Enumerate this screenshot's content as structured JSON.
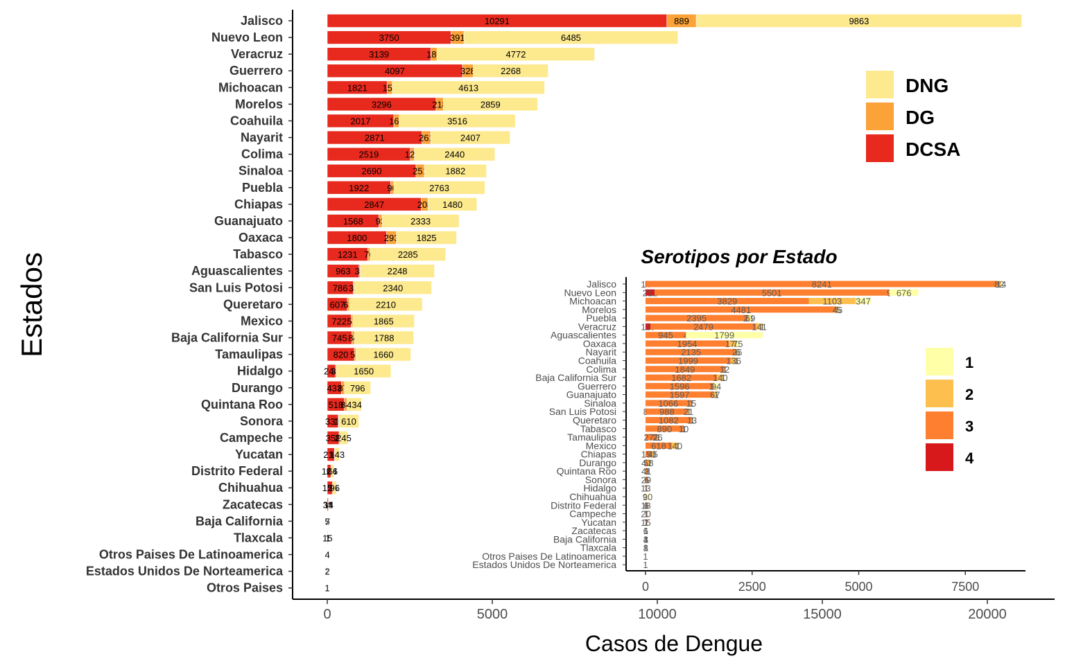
{
  "chart_data": [
    {
      "type": "bar",
      "orientation": "horizontal",
      "stacked": true,
      "xlabel": "Casos de Dengue",
      "ylabel": "Estados",
      "xlim": [
        0,
        21000
      ],
      "xticks": [
        0,
        5000,
        10000,
        15000,
        20000
      ],
      "legend_position": "top-right",
      "categories": [
        "Jalisco",
        "Nuevo Leon",
        "Veracruz",
        "Guerrero",
        "Michoacan",
        "Morelos",
        "Coahuila",
        "Nayarit",
        "Colima",
        "Sinaloa",
        "Puebla",
        "Chiapas",
        "Guanajuato",
        "Oaxaca",
        "Tabasco",
        "Aguascalientes",
        "San  Luis Potosi",
        "Queretaro",
        "Mexico",
        "Baja California Sur",
        "Tamaulipas",
        "Hidalgo",
        "Durango",
        "Quintana Roo",
        "Sonora",
        "Campeche",
        "Yucatan",
        "Distrito Federal",
        "Chihuahua",
        "Zacatecas",
        "Baja California",
        "Tlaxcala",
        "Otros Paises De Latinoamerica",
        "Estados Unidos De Norteamerica",
        "Otros Paises"
      ],
      "series": [
        {
          "name": "DCSA",
          "color": "#e8291d",
          "values": [
            10291,
            3750,
            3139,
            4097,
            1821,
            3296,
            2017,
            2871,
            2519,
            2690,
            1922,
            2847,
            1568,
            1800,
            1231,
            963,
            786,
            607,
            722,
            745,
            820,
            248,
            433,
            518,
            331,
            358,
            216,
            108,
            152,
            34,
            5,
            15,
            4,
            1,
            1
          ]
        },
        {
          "name": "DG",
          "color": "#fba338",
          "values": [
            889,
            391,
            189,
            328,
            152,
            218,
            165,
            261,
            121,
            251,
            90,
            208,
            93,
            293,
            70,
            36,
            35,
            63,
            53,
            84,
            51,
            33,
            87,
            84,
            16,
            24,
            13,
            26,
            26,
            14,
            7,
            1,
            0,
            2,
            0
          ]
        },
        {
          "name": "DNG",
          "color": "#fde98e",
          "values": [
            9863,
            6485,
            4772,
            2268,
            4613,
            2859,
            3516,
            2407,
            2440,
            1882,
            2763,
            1480,
            2333,
            1825,
            2285,
            2248,
            2340,
            2210,
            1865,
            1788,
            1660,
            1650,
            796,
            434,
            610,
            245,
            143,
            66,
            96,
            4,
            0,
            0,
            0,
            0,
            0
          ]
        }
      ],
      "legend_order": [
        "DNG",
        "DG",
        "DCSA"
      ]
    },
    {
      "type": "bar",
      "orientation": "horizontal",
      "stacked": true,
      "title": "Serotipos por Estado",
      "xlim": [
        0,
        9000
      ],
      "xticks": [
        0,
        2500,
        5000,
        7500
      ],
      "legend_position": "right",
      "categories": [
        "Jalisco",
        "Nuevo Leon",
        "Michoacan",
        "Morelos",
        "Puebla",
        "Veracruz",
        "Aguascalientes",
        "Oaxaca",
        "Nayarit",
        "Coahuila",
        "Colima",
        "Baja California Sur",
        "Guerrero",
        "Guanajuato",
        "Sinaloa",
        "San  Luis Potosi",
        "Queretaro",
        "Tabasco",
        "Tamaulipas",
        "Mexico",
        "Chiapas",
        "Durango",
        "Quintana Roo",
        "Sonora",
        "Hidalgo",
        "Chihuahua",
        "Distrito Federal",
        "Campeche",
        "Yucatan",
        "Zacatecas",
        "Baja California",
        "Tlaxcala",
        "Otros Paises De Latinoamerica",
        "Estados Unidos De Norteamerica"
      ],
      "series": [
        {
          "name": "4",
          "color": "#d7191c",
          "values": [
            14,
            212,
            0,
            0,
            0,
            119,
            0,
            0,
            0,
            0,
            0,
            0,
            0,
            0,
            0,
            8,
            0,
            0,
            0,
            0,
            0,
            0,
            0,
            0,
            0,
            0,
            0,
            0,
            0,
            0,
            0,
            0,
            0,
            0
          ]
        },
        {
          "name": "3",
          "color": "#fd7f2f",
          "values": [
            8241,
            5501,
            3829,
            4481,
            2395,
            2479,
            945,
            1954,
            2135,
            1999,
            1849,
            1682,
            1596,
            1597,
            1066,
            988,
            1082,
            890,
            272,
            618,
            150,
            42,
            41,
            29,
            13,
            3,
            18,
            20,
            15,
            6,
            4,
            1,
            1,
            1
          ]
        },
        {
          "name": "2",
          "color": "#fdbf4e",
          "values": [
            82,
            9,
            1103,
            46,
            28,
            141,
            4,
            175,
            26,
            136,
            12,
            140,
            15,
            67,
            15,
            21,
            13,
            10,
            26,
            140,
            45,
            58,
            3,
            6,
            1,
            1,
            6,
            1,
            7,
            1,
            3,
            8,
            0,
            0
          ]
        },
        {
          "name": "1",
          "color": "#feffa6",
          "values": [
            14,
            676,
            347,
            5,
            69,
            1,
            1799,
            75,
            6,
            1,
            1,
            1,
            94,
            1,
            1,
            1,
            1,
            1,
            1,
            1,
            1,
            1,
            1,
            1,
            1,
            90,
            1,
            1,
            1,
            1,
            1,
            1,
            0,
            0
          ]
        }
      ],
      "legend_order": [
        "1",
        "2",
        "3",
        "4"
      ]
    }
  ]
}
